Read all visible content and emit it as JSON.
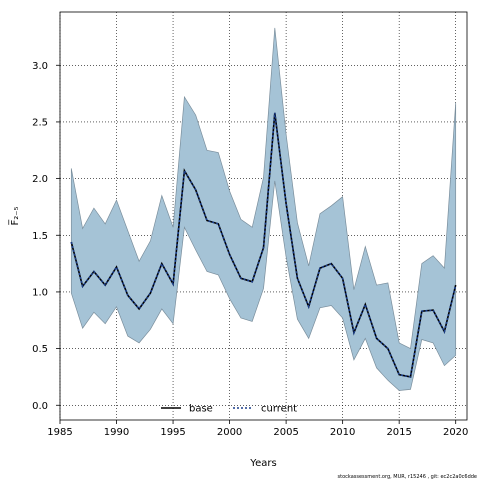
{
  "chart_data": {
    "type": "line",
    "title": "",
    "xlabel": "Years",
    "ylabel": "F̅₂₋₅",
    "xlim": [
      1985,
      2021
    ],
    "ylim": [
      -0.13,
      3.47
    ],
    "xticks": [
      1985,
      1990,
      1995,
      2000,
      2005,
      2010,
      2015,
      2020
    ],
    "yticks": [
      "0.0",
      "0.5",
      "1.0",
      "1.5",
      "2.0",
      "2.5",
      "3.0"
    ],
    "grid": true,
    "legend_position": "bottom-center",
    "x": [
      1986,
      1987,
      1988,
      1989,
      1990,
      1991,
      1992,
      1993,
      1994,
      1995,
      1996,
      1997,
      1998,
      1999,
      2000,
      2001,
      2002,
      2003,
      2004,
      2005,
      2006,
      2007,
      2008,
      2009,
      2010,
      2011,
      2012,
      2013,
      2014,
      2015,
      2016,
      2017,
      2018,
      2019,
      2020
    ],
    "series": [
      {
        "name": "base",
        "style": "solid",
        "color": "#000000",
        "values": [
          1.44,
          1.05,
          1.18,
          1.06,
          1.22,
          0.97,
          0.85,
          0.99,
          1.25,
          1.07,
          2.07,
          1.9,
          1.63,
          1.6,
          1.33,
          1.12,
          1.09,
          1.39,
          2.58,
          1.78,
          1.12,
          0.87,
          1.21,
          1.25,
          1.12,
          0.64,
          0.89,
          0.59,
          0.5,
          0.27,
          0.25,
          0.83,
          0.84,
          0.65,
          1.06
        ]
      },
      {
        "name": "current",
        "style": "dotted",
        "color": "#1c3f8c",
        "values": [
          1.44,
          1.05,
          1.18,
          1.06,
          1.22,
          0.97,
          0.85,
          0.99,
          1.25,
          1.07,
          2.07,
          1.9,
          1.63,
          1.6,
          1.33,
          1.12,
          1.09,
          1.39,
          2.58,
          1.78,
          1.12,
          0.87,
          1.21,
          1.25,
          1.12,
          0.64,
          0.89,
          0.59,
          0.5,
          0.27,
          0.25,
          0.83,
          0.84,
          0.65,
          1.06
        ]
      }
    ],
    "band": {
      "color": "#a5c3d6",
      "edge_color": "#7a8e9c",
      "upper": [
        2.09,
        1.56,
        1.74,
        1.6,
        1.81,
        1.54,
        1.27,
        1.45,
        1.85,
        1.57,
        2.72,
        2.56,
        2.25,
        2.23,
        1.89,
        1.64,
        1.57,
        2.01,
        3.33,
        2.39,
        1.61,
        1.23,
        1.69,
        1.76,
        1.84,
        1.02,
        1.4,
        1.06,
        1.08,
        0.55,
        0.5,
        1.25,
        1.32,
        1.21,
        2.67
      ],
      "lower": [
        0.99,
        0.68,
        0.82,
        0.72,
        0.87,
        0.61,
        0.55,
        0.67,
        0.85,
        0.72,
        1.57,
        1.37,
        1.18,
        1.15,
        0.94,
        0.77,
        0.74,
        1.03,
        1.98,
        1.31,
        0.76,
        0.59,
        0.86,
        0.88,
        0.77,
        0.4,
        0.59,
        0.33,
        0.22,
        0.13,
        0.14,
        0.58,
        0.55,
        0.35,
        0.44
      ]
    }
  },
  "footer_text": "stockassessment.org, MUR, r15246 , git: ec2c2a0c6dde"
}
